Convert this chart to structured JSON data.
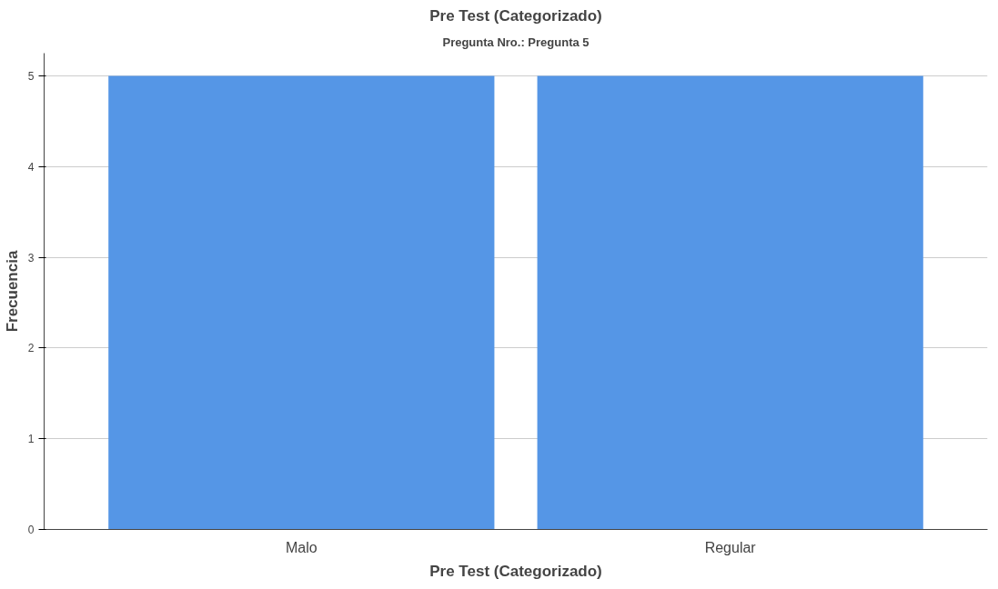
{
  "chart_data": {
    "type": "bar",
    "title": "Pre Test (Categorizado)",
    "subtitle": "Pregunta Nro.: Pregunta 5",
    "xlabel": "Pre Test (Categorizado)",
    "ylabel": "Frecuencia",
    "categories": [
      "Malo",
      "Regular"
    ],
    "values": [
      5,
      5
    ],
    "color": "#5596e6",
    "ylim": [
      0,
      5.25
    ],
    "yticks": [
      0,
      1,
      2,
      3,
      4,
      5
    ],
    "grid": "y"
  }
}
